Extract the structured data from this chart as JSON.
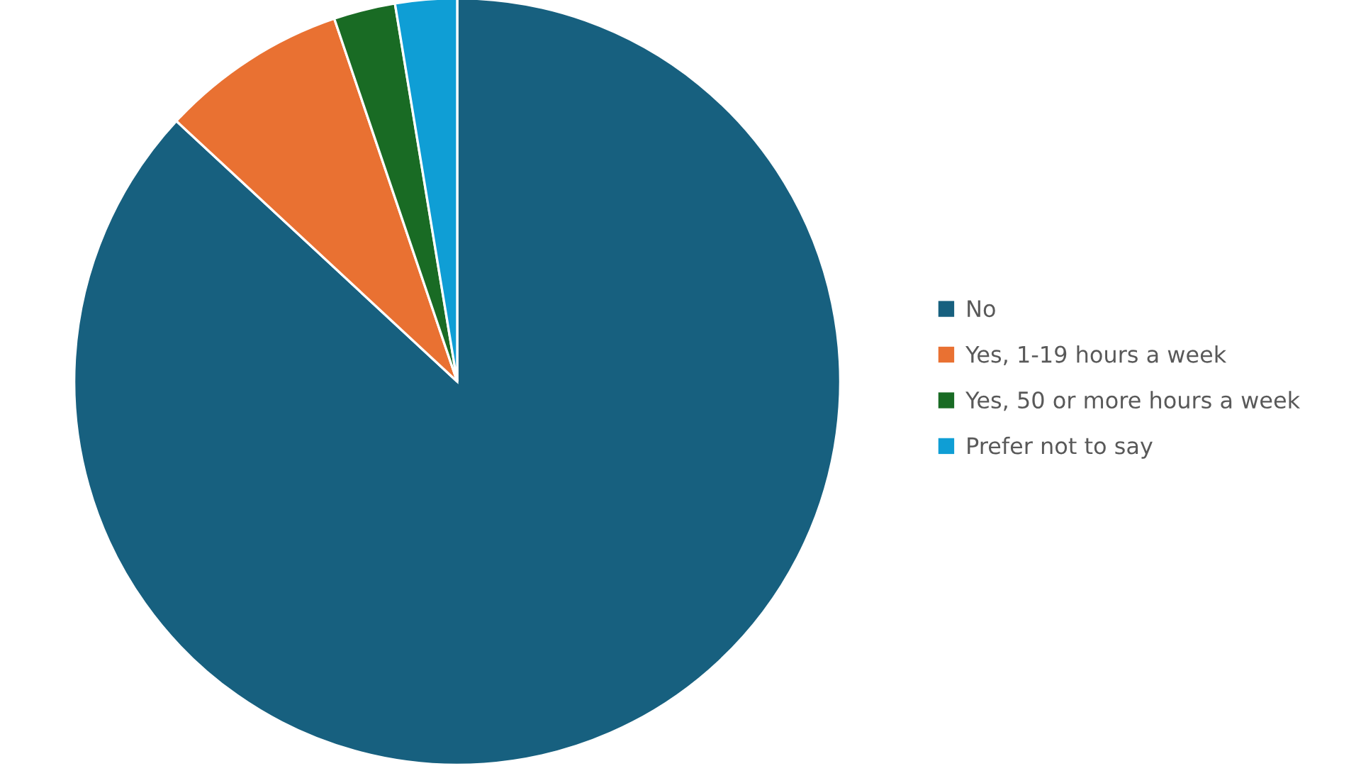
{
  "chart_data": {
    "type": "pie",
    "categories": [
      "No",
      "Yes, 1-19 hours a week",
      "Yes, 50 or more hours a week",
      "Prefer not to say"
    ],
    "values": [
      86.9,
      7.9,
      2.6,
      2.6
    ],
    "colors": [
      "#17607f",
      "#e97132",
      "#196b24",
      "#0f9ed5"
    ],
    "legend": "right"
  }
}
